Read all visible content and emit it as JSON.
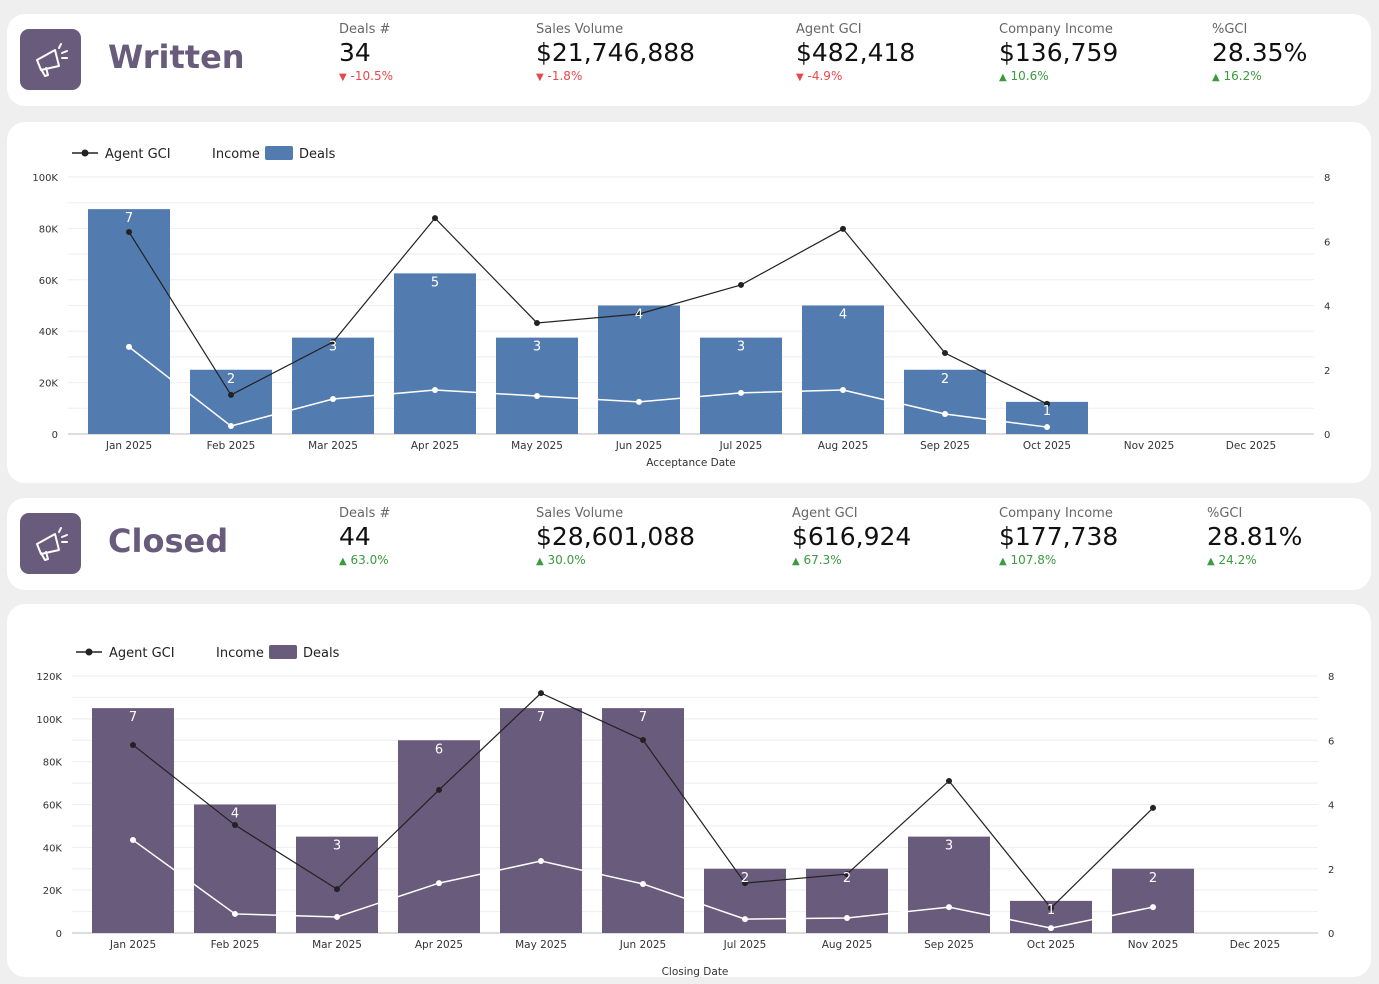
{
  "written": {
    "title": "Written",
    "icon": "megaphone-icon",
    "kpis": [
      {
        "label": "Deals #",
        "value": "34",
        "change": "-10.5%",
        "direction": "down"
      },
      {
        "label": "Sales Volume",
        "value": "$21,746,888",
        "change": "-1.8%",
        "direction": "down"
      },
      {
        "label": "Agent GCI",
        "value": "$482,418",
        "change": "-4.9%",
        "direction": "down"
      },
      {
        "label": "Company Income",
        "value": "$136,759",
        "change": "10.6%",
        "direction": "up"
      },
      {
        "label": "%GCI",
        "value": "28.35%",
        "change": "16.2%",
        "direction": "up"
      }
    ]
  },
  "closed": {
    "title": "Closed",
    "icon": "megaphone-icon",
    "kpis": [
      {
        "label": "Deals #",
        "value": "44",
        "change": "63.0%",
        "direction": "up"
      },
      {
        "label": "Sales Volume",
        "value": "$28,601,088",
        "change": "30.0%",
        "direction": "up"
      },
      {
        "label": "Agent GCI",
        "value": "$616,924",
        "change": "67.3%",
        "direction": "up"
      },
      {
        "label": "Company Income",
        "value": "$177,738",
        "change": "107.8%",
        "direction": "up"
      },
      {
        "label": "%GCI",
        "value": "28.81%",
        "change": "24.2%",
        "direction": "up"
      }
    ]
  },
  "colors": {
    "brand": "#685b7c",
    "written_bar": "#527bb0",
    "closed_bar": "#685b7c",
    "down": "#e8474b",
    "up": "#3a9a3e"
  },
  "chart_data": [
    {
      "type": "bar+line",
      "xlabel": "Acceptance Date",
      "categories": [
        "Jan 2025",
        "Feb 2025",
        "Mar 2025",
        "Apr 2025",
        "May 2025",
        "Jun 2025",
        "Jul 2025",
        "Aug 2025",
        "Sep 2025",
        "Oct 2025",
        "Nov 2025",
        "Dec 2025"
      ],
      "legend": [
        "Agent GCI",
        "Income",
        "Deals"
      ],
      "left_axis": {
        "range": [
          0,
          100000
        ],
        "ticks": [
          "0",
          "20K",
          "40K",
          "60K",
          "80K",
          "100K"
        ]
      },
      "right_axis": {
        "range": [
          0,
          8
        ],
        "ticks": [
          "0",
          "2",
          "4",
          "6",
          "8"
        ]
      },
      "series": [
        {
          "name": "Deals",
          "kind": "bar",
          "axis": "right",
          "values": [
            7,
            2,
            3,
            5,
            3,
            4,
            3,
            4,
            2,
            1,
            null,
            null
          ]
        },
        {
          "name": "Agent GCI",
          "kind": "line",
          "axis": "left",
          "color": "#222222",
          "values": [
            78600,
            15200,
            35800,
            84000,
            43200,
            46700,
            58000,
            79800,
            31500,
            11700,
            null,
            null
          ]
        },
        {
          "name": "Income",
          "kind": "line",
          "axis": "left",
          "color": "#ffffff",
          "values": [
            33900,
            3100,
            13600,
            17100,
            14800,
            12500,
            16000,
            17100,
            7800,
            2700,
            null,
            null
          ]
        }
      ]
    },
    {
      "type": "bar+line",
      "xlabel": "Closing Date",
      "categories": [
        "Jan 2025",
        "Feb 2025",
        "Mar 2025",
        "Apr 2025",
        "May 2025",
        "Jun 2025",
        "Jul 2025",
        "Aug 2025",
        "Sep 2025",
        "Oct 2025",
        "Nov 2025",
        "Dec 2025"
      ],
      "legend": [
        "Agent GCI",
        "Income",
        "Deals"
      ],
      "left_axis": {
        "range": [
          0,
          120000
        ],
        "ticks": [
          "0",
          "20K",
          "40K",
          "60K",
          "80K",
          "100K",
          "120K"
        ]
      },
      "right_axis": {
        "range": [
          0,
          8
        ],
        "ticks": [
          "0",
          "2",
          "4",
          "6",
          "8"
        ]
      },
      "series": [
        {
          "name": "Deals",
          "kind": "bar",
          "axis": "right",
          "values": [
            7,
            4,
            3,
            6,
            7,
            7,
            2,
            2,
            3,
            1,
            2,
            null
          ]
        },
        {
          "name": "Agent GCI",
          "kind": "line",
          "axis": "left",
          "color": "#222222",
          "values": [
            87800,
            50400,
            20500,
            66800,
            112000,
            90100,
            23300,
            27500,
            71000,
            11700,
            58400,
            null
          ]
        },
        {
          "name": "Income",
          "kind": "line",
          "axis": "left",
          "color": "#ffffff",
          "values": [
            43400,
            8900,
            7500,
            23300,
            33600,
            22900,
            6500,
            7000,
            12100,
            2300,
            12100,
            null
          ]
        }
      ]
    }
  ]
}
